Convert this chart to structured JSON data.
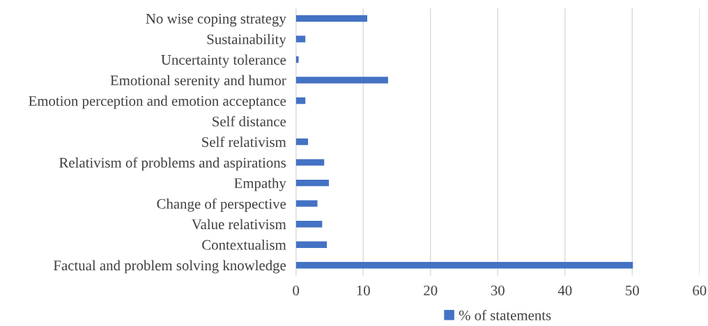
{
  "chart_data": {
    "type": "bar",
    "orientation": "horizontal",
    "categories": [
      "No wise coping strategy",
      "Sustainability",
      "Uncertainty tolerance",
      "Emotional serenity and humor",
      "Emotion perception and emotion acceptance",
      "Self distance",
      "Self relativism",
      "Relativism of problems and aspirations",
      "Empathy",
      "Change of perspective",
      "Value relativism",
      "Contextualism",
      "Factual and problem solving knowledge"
    ],
    "series": [
      {
        "name": "% of statements",
        "color": "#4472c4",
        "values": [
          10.6,
          1.4,
          0.4,
          13.7,
          1.4,
          0,
          1.8,
          4.2,
          4.9,
          3.2,
          3.9,
          4.6,
          50.1
        ]
      }
    ],
    "xlim": [
      0,
      60
    ],
    "xticks": [
      0,
      10,
      20,
      30,
      40,
      50,
      60
    ],
    "grid": "x",
    "legend": "bottom"
  }
}
